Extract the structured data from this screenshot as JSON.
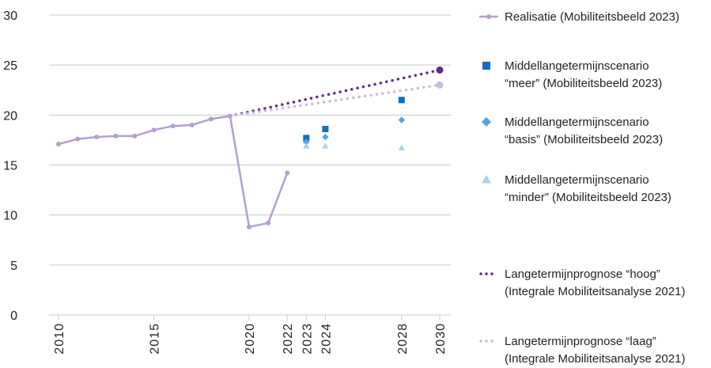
{
  "chart_data": {
    "type": "line",
    "title": "",
    "xlabel": "",
    "ylabel": "",
    "ylim": [
      0,
      30
    ],
    "xlim": [
      2010,
      2030
    ],
    "y_ticks": [
      "0",
      "5",
      "10",
      "15",
      "20",
      "25",
      "30"
    ],
    "x_ticks": [
      "2010",
      "2015",
      "2020",
      "2022",
      "2023",
      "2024",
      "2028",
      "2030"
    ],
    "grid": true,
    "legend_position": "right",
    "series": [
      {
        "name": "Realisatie (Mobiliteitsbeeld 2023)",
        "kind": "line",
        "color": "#b39fcc",
        "points": [
          [
            2010,
            17.1
          ],
          [
            2011,
            17.6
          ],
          [
            2012,
            17.8
          ],
          [
            2013,
            17.9
          ],
          [
            2014,
            17.9
          ],
          [
            2015,
            18.5
          ],
          [
            2016,
            18.9
          ],
          [
            2017,
            19.0
          ],
          [
            2018,
            19.6
          ],
          [
            2019,
            19.9
          ],
          [
            2020,
            8.8
          ],
          [
            2021,
            9.2
          ],
          [
            2022,
            14.2
          ]
        ]
      },
      {
        "name": "Middellangetermijnscenario\n“meer” (Mobiliteitsbeeld 2023)",
        "kind": "square",
        "color": "#0f6fc0",
        "points": [
          [
            2023,
            17.7
          ],
          [
            2024,
            18.6
          ],
          [
            2028,
            21.5
          ]
        ]
      },
      {
        "name": "Middellangetermijnscenario\n“basis” (Mobiliteitsbeeld 2023)",
        "kind": "diamond",
        "color": "#5aa3dd",
        "points": [
          [
            2023,
            17.3
          ],
          [
            2024,
            17.8
          ],
          [
            2028,
            19.5
          ]
        ]
      },
      {
        "name": "Middellangetermijnscenario\n“minder” (Mobiliteitsbeeld 2023)",
        "kind": "triangle",
        "color": "#a8d3ea",
        "points": [
          [
            2023,
            16.9
          ],
          [
            2024,
            16.9
          ],
          [
            2028,
            16.7
          ]
        ]
      },
      {
        "name": "Langetermijnprognose “hoog”\n(Integrale Mobiliteitsanalyse 2021)",
        "kind": "dotted",
        "color": "#5e2a84",
        "points": [
          [
            2019,
            19.9
          ],
          [
            2030,
            24.5
          ]
        ]
      },
      {
        "name": "Langetermijnprognose “laag”\n(Integrale Mobiliteitsanalyse 2021)",
        "kind": "dotted",
        "color": "#c7bcd8",
        "points": [
          [
            2019,
            19.9
          ],
          [
            2030,
            23.0
          ]
        ]
      }
    ]
  }
}
